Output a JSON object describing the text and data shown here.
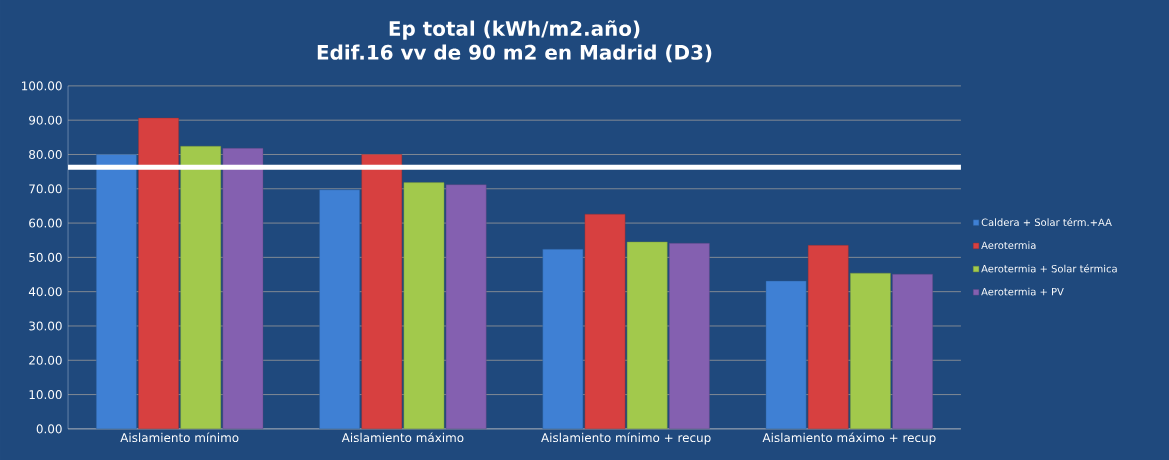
{
  "chart_data": {
    "type": "bar",
    "title": "Ep total (kWh/m2.año)",
    "subtitle": "Edif.16 vv de 90 m2 en Madrid (D3)",
    "categories": [
      "Aislamiento mínimo",
      "Aislamiento máximo",
      "Aislamiento mínimo + recup",
      "Aislamiento máximo + recup"
    ],
    "series": [
      {
        "name": "Caldera + Solar térm.+AA",
        "color": "#3f80d4",
        "values": [
          80.0,
          69.7,
          52.4,
          43.1
        ]
      },
      {
        "name": "Aerotermia",
        "color": "#d74040",
        "values": [
          90.6,
          80.0,
          62.6,
          53.5
        ]
      },
      {
        "name": "Aerotermia + Solar térmica",
        "color": "#a2c94c",
        "values": [
          82.4,
          71.8,
          54.5,
          45.4
        ]
      },
      {
        "name": "Aerotermia + PV",
        "color": "#8460b0",
        "values": [
          81.8,
          71.2,
          54.1,
          45.1
        ]
      }
    ],
    "ylim": [
      0,
      100
    ],
    "yticks": [
      {
        "value": 0,
        "label": "0.00"
      },
      {
        "value": 10,
        "label": "10.00"
      },
      {
        "value": 20,
        "label": "20.00"
      },
      {
        "value": 30,
        "label": "30.00"
      },
      {
        "value": 40,
        "label": "40.00"
      },
      {
        "value": 50,
        "label": "50.00"
      },
      {
        "value": 60,
        "label": "60.00"
      },
      {
        "value": 70,
        "label": "70.00"
      },
      {
        "value": 80,
        "label": "80.00"
      },
      {
        "value": 90,
        "label": "90.00"
      },
      {
        "value": 100,
        "label": "100.00"
      }
    ],
    "grid": "y",
    "legend": "right",
    "ref_lines": [
      {
        "axis": "y",
        "value": 76.3,
        "color": "#ffffff"
      }
    ]
  }
}
